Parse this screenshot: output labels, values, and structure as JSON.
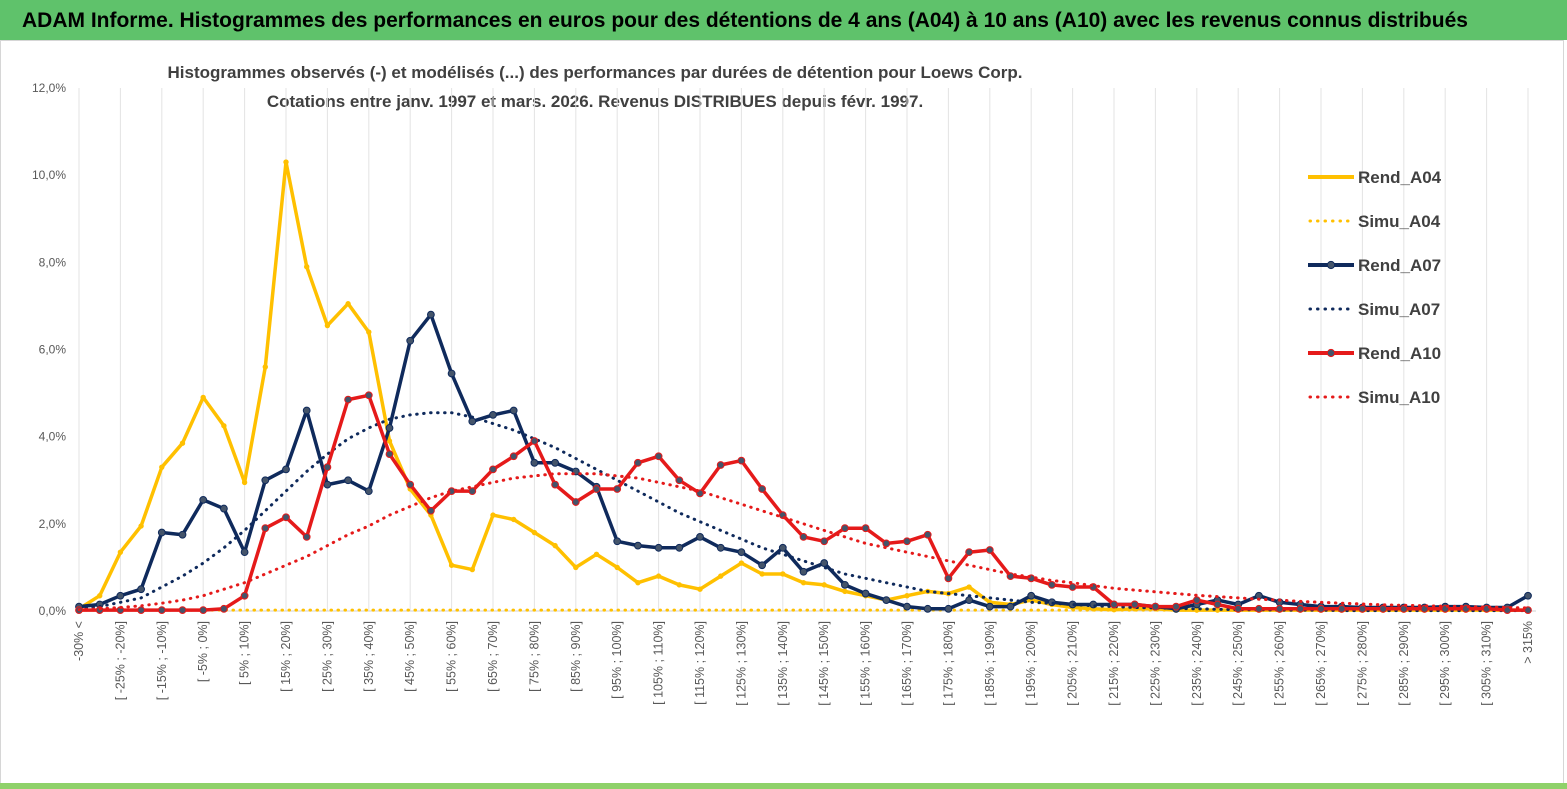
{
  "banner": {
    "text": "ADAM Informe. Histogrammes des performances en euros pour des détentions de 4 ans (A04) à 10 ans (A10) avec les revenus connus distribués",
    "color": "#5fc26b"
  },
  "chart_data": {
    "type": "line",
    "title": "Histogrammes observés (-) et modélisés (...) des performances par durées de détention pour Loews Corp.",
    "subtitle": "Cotations entre janv. 1997 et mars. 2026. Revenus DISTRIBUES depuis févr. 1997.",
    "ylim": [
      0,
      12
    ],
    "yticks": [
      "0,0%",
      "2,0%",
      "4,0%",
      "6,0%",
      "8,0%",
      "10,0%",
      "12,0%"
    ],
    "grid": "vertical",
    "legend_position": "right",
    "categories": [
      "-30% <",
      "[ -30% ; -25%]",
      "[ -25% ; -20%]",
      "[ -20% ; -15%]",
      "[ -15% ; -10%]",
      "[ -10% ; -5%]",
      "[ -5% ; 0%]",
      "[ 0% ; 5%]",
      "[ 5% ; 10%]",
      "[ 10% ; 15%]",
      "[ 15% ; 20%]",
      "[ 20% ; 25%]",
      "[ 25% ; 30%]",
      "[ 30% ; 35%]",
      "[ 35% ; 40%]",
      "[ 40% ; 45%]",
      "[ 45% ; 50%]",
      "[ 50% ; 55%]",
      "[ 55% ; 60%]",
      "[ 60% ; 65%]",
      "[ 65% ; 70%]",
      "[ 70% ; 75%]",
      "[ 75% ; 80%]",
      "[ 80% ; 85%]",
      "[ 85% ; 90%]",
      "[ 90% ; 95%]",
      "[ 95% ; 100%]",
      "[ 100% ; 105%]",
      "[ 105% ; 110%]",
      "[ 110% ; 115%]",
      "[ 115% ; 120%]",
      "[ 120% ; 125%]",
      "[ 125% ; 130%]",
      "[ 130% ; 135%]",
      "[ 135% ; 140%]",
      "[ 140% ; 145%]",
      "[ 145% ; 150%]",
      "[ 150% ; 155%]",
      "[ 155% ; 160%]",
      "[ 160% ; 165%]",
      "[ 165% ; 170%]",
      "[ 170% ; 175%]",
      "[ 175% ; 180%]",
      "[ 180% ; 185%]",
      "[ 185% ; 190%]",
      "[ 190% ; 195%]",
      "[ 195% ; 200%]",
      "[ 200% ; 205%]",
      "[ 205% ; 210%]",
      "[ 210% ; 215%]",
      "[ 215% ; 220%]",
      "[ 220% ; 225%]",
      "[ 225% ; 230%]",
      "[ 230% ; 235%]",
      "[ 235% ; 240%]",
      "[ 240% ; 245%]",
      "[ 245% ; 250%]",
      "[ 250% ; 255%]",
      "[ 255% ; 260%]",
      "[ 260% ; 265%]",
      "[ 265% ; 270%]",
      "[ 270% ; 275%]",
      "[ 275% ; 280%]",
      "[ 280% ; 285%]",
      "[ 285% ; 290%]",
      "[ 290% ; 295%]",
      "[ 295% ; 300%]",
      "[ 300% ; 305%]",
      "[ 305% ; 310%]",
      "[ 310% ; 315%]",
      "> 315%"
    ],
    "series": [
      {
        "name": "Rend_A04",
        "color": "#ffc000",
        "style": "solid",
        "values": [
          0.05,
          0.35,
          1.35,
          1.95,
          3.3,
          3.85,
          4.9,
          4.25,
          2.95,
          5.6,
          10.3,
          7.9,
          6.55,
          7.05,
          6.4,
          3.9,
          2.8,
          2.2,
          1.05,
          0.95,
          2.2,
          2.1,
          1.8,
          1.5,
          1.0,
          1.3,
          1.0,
          0.65,
          0.8,
          0.6,
          0.5,
          0.8,
          1.1,
          0.85,
          0.85,
          0.65,
          0.6,
          0.45,
          0.35,
          0.25,
          0.35,
          0.45,
          0.4,
          0.55,
          0.2,
          0.15,
          0.25,
          0.15,
          0.08,
          0.05,
          0.03,
          0.05,
          0.05,
          0.02,
          0.02,
          0.02,
          0.02,
          0.02,
          0.02,
          0.02,
          0.02,
          0.02,
          0.02,
          0.02,
          0.02,
          0.02,
          0.02,
          0.02,
          0.02,
          0.02,
          0.02
        ]
      },
      {
        "name": "Simu_A04",
        "color": "#ffc000",
        "style": "dotted",
        "values": [
          0.02,
          0.02,
          0.02,
          0.02,
          0.02,
          0.02,
          0.02,
          0.02,
          0.02,
          0.02,
          0.02,
          0.02,
          0.02,
          0.02,
          0.02,
          0.02,
          0.02,
          0.02,
          0.02,
          0.02,
          0.02,
          0.02,
          0.02,
          0.02,
          0.02,
          0.02,
          0.02,
          0.02,
          0.02,
          0.02,
          0.02,
          0.02,
          0.02,
          0.02,
          0.02,
          0.02,
          0.02,
          0.02,
          0.02,
          0.02,
          0.02,
          0.02,
          0.02,
          0.02,
          0.02,
          0.02,
          0.02,
          0.02,
          0.02,
          0.02,
          0.02,
          0.02,
          0.02,
          0.02,
          0.02,
          0.02,
          0.02,
          0.02,
          0.02,
          0.02,
          0.02,
          0.02,
          0.02,
          0.02,
          0.02,
          0.02,
          0.02,
          0.02,
          0.02,
          0.02,
          0.02
        ]
      },
      {
        "name": "Rend_A07",
        "color": "#0f2a5c",
        "style": "solid",
        "values": [
          0.1,
          0.15,
          0.35,
          0.5,
          1.8,
          1.75,
          2.55,
          2.35,
          1.35,
          3.0,
          3.25,
          4.6,
          2.9,
          3.0,
          2.75,
          4.2,
          6.2,
          6.8,
          5.45,
          4.35,
          4.5,
          4.6,
          3.4,
          3.4,
          3.2,
          2.85,
          1.6,
          1.5,
          1.45,
          1.45,
          1.7,
          1.45,
          1.35,
          1.05,
          1.45,
          0.9,
          1.1,
          0.6,
          0.4,
          0.25,
          0.1,
          0.05,
          0.05,
          0.25,
          0.1,
          0.1,
          0.35,
          0.2,
          0.15,
          0.15,
          0.15,
          0.15,
          0.1,
          0.05,
          0.15,
          0.25,
          0.15,
          0.35,
          0.2,
          0.15,
          0.1,
          0.1,
          0.08,
          0.08,
          0.08,
          0.08,
          0.1,
          0.1,
          0.08,
          0.08,
          0.35
        ]
      },
      {
        "name": "Simu_A07",
        "color": "#0f2a5c",
        "style": "dotted",
        "values": [
          0.05,
          0.1,
          0.2,
          0.3,
          0.55,
          0.8,
          1.1,
          1.45,
          1.85,
          2.3,
          2.75,
          3.2,
          3.6,
          3.95,
          4.2,
          4.4,
          4.5,
          4.55,
          4.55,
          4.45,
          4.3,
          4.15,
          3.95,
          3.75,
          3.5,
          3.25,
          3.0,
          2.75,
          2.5,
          2.25,
          2.05,
          1.85,
          1.65,
          1.45,
          1.3,
          1.15,
          1.0,
          0.85,
          0.75,
          0.65,
          0.55,
          0.45,
          0.4,
          0.35,
          0.3,
          0.25,
          0.2,
          0.18,
          0.15,
          0.12,
          0.1,
          0.08,
          0.07,
          0.06,
          0.05,
          0.04,
          0.03,
          0.03,
          0.02,
          0.02,
          0.02,
          0.01,
          0.01,
          0.01,
          0.01,
          0.01,
          0.01,
          0.01,
          0.01,
          0.01,
          0.01
        ]
      },
      {
        "name": "Rend_A10",
        "color": "#e51a1a",
        "style": "solid",
        "values": [
          0.02,
          0.02,
          0.02,
          0.02,
          0.02,
          0.02,
          0.02,
          0.05,
          0.35,
          1.9,
          2.15,
          1.7,
          3.3,
          4.85,
          4.95,
          3.6,
          2.9,
          2.3,
          2.75,
          2.75,
          3.25,
          3.55,
          3.9,
          2.9,
          2.5,
          2.8,
          2.8,
          3.4,
          3.55,
          3.0,
          2.7,
          3.35,
          3.45,
          2.8,
          2.2,
          1.7,
          1.6,
          1.9,
          1.9,
          1.55,
          1.6,
          1.75,
          0.75,
          1.35,
          1.4,
          0.8,
          0.75,
          0.6,
          0.55,
          0.55,
          0.15,
          0.15,
          0.1,
          0.1,
          0.25,
          0.15,
          0.05,
          0.05,
          0.05,
          0.05,
          0.05,
          0.05,
          0.05,
          0.05,
          0.05,
          0.05,
          0.05,
          0.05,
          0.05,
          0.02,
          0.02
        ]
      },
      {
        "name": "Simu_A10",
        "color": "#e51a1a",
        "style": "dotted",
        "values": [
          0.03,
          0.05,
          0.08,
          0.12,
          0.18,
          0.25,
          0.35,
          0.5,
          0.65,
          0.85,
          1.05,
          1.25,
          1.5,
          1.75,
          1.95,
          2.2,
          2.4,
          2.6,
          2.75,
          2.85,
          2.95,
          3.05,
          3.1,
          3.15,
          3.15,
          3.15,
          3.1,
          3.05,
          2.95,
          2.85,
          2.75,
          2.6,
          2.45,
          2.3,
          2.15,
          2.0,
          1.85,
          1.7,
          1.55,
          1.45,
          1.35,
          1.25,
          1.15,
          1.05,
          0.95,
          0.85,
          0.78,
          0.7,
          0.65,
          0.58,
          0.52,
          0.48,
          0.44,
          0.4,
          0.36,
          0.33,
          0.3,
          0.27,
          0.25,
          0.22,
          0.2,
          0.18,
          0.16,
          0.14,
          0.13,
          0.12,
          0.11,
          0.1,
          0.09,
          0.08,
          0.07
        ]
      }
    ]
  }
}
